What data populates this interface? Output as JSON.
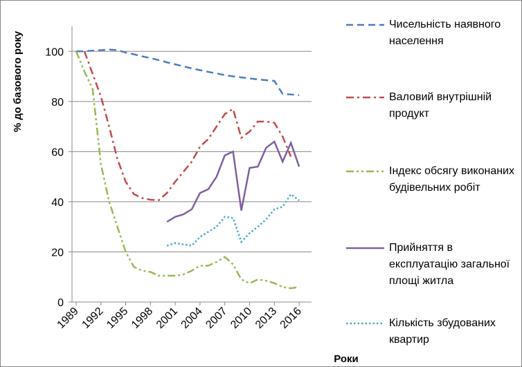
{
  "chart_data": {
    "type": "line",
    "y_label": "% до базового року",
    "x_label": "Роки",
    "x": [
      1989,
      1990,
      1991,
      1992,
      1993,
      1994,
      1995,
      1996,
      1997,
      1998,
      1999,
      2000,
      2001,
      2002,
      2003,
      2004,
      2005,
      2006,
      2007,
      2008,
      2009,
      2010,
      2011,
      2012,
      2013,
      2014,
      2015,
      2016
    ],
    "xlim": [
      1988.5,
      2017.5
    ],
    "xticks": [
      1989,
      1992,
      1995,
      1998,
      2001,
      2004,
      2007,
      2010,
      2013,
      2016
    ],
    "ylim": [
      0,
      110
    ],
    "yticks": [
      0,
      20,
      40,
      60,
      80,
      100
    ],
    "grid": true,
    "series": [
      {
        "name": "Чисельність наявного населення",
        "color": "#4a7ebb",
        "dash": "dashed",
        "values": [
          100,
          100,
          100.3,
          100.5,
          100.7,
          100.5,
          99.5,
          98.8,
          98,
          97.3,
          96.5,
          95.6,
          94.8,
          94,
          93.2,
          92.5,
          91.8,
          91.2,
          90.5,
          90,
          89.6,
          89.2,
          88.8,
          88.5,
          88.2,
          83,
          82.8,
          82.5
        ]
      },
      {
        "name": "Валовий внутрішній продукт",
        "color": "#be4b48",
        "dash": "dashdot",
        "values": [
          null,
          100,
          91,
          82,
          70,
          57,
          48,
          43,
          41.5,
          40.8,
          40.6,
          43.5,
          48,
          52,
          56,
          62,
          65,
          70,
          75,
          77,
          65.5,
          68,
          72,
          72,
          71.5,
          66,
          58,
          null
        ]
      },
      {
        "name": "Індекс обсягу виконаних будівельних робіт",
        "color": "#98b954",
        "dash": "dashdotdot",
        "values": [
          100,
          92,
          85,
          55,
          40,
          30,
          20,
          14,
          12.5,
          12,
          10.5,
          10.5,
          10.5,
          11,
          12.5,
          14.5,
          14.5,
          16,
          18,
          15,
          9,
          7.5,
          9,
          8.5,
          7.5,
          6,
          5.5,
          6
        ]
      },
      {
        "name": "Прийняття в експлуатацію загальної площі житла",
        "color": "#7d60a0",
        "dash": "solid",
        "values": [
          null,
          null,
          null,
          null,
          null,
          null,
          null,
          null,
          null,
          null,
          null,
          32,
          34,
          35,
          37,
          43.5,
          45,
          50,
          58.5,
          60,
          36.5,
          53.5,
          54,
          61.5,
          64,
          56,
          63.5,
          54
        ]
      },
      {
        "name": "Кількість збудованих квартир",
        "color": "#46aac5",
        "dash": "dotted",
        "values": [
          null,
          null,
          null,
          null,
          null,
          null,
          null,
          null,
          null,
          null,
          null,
          22.5,
          23.5,
          23,
          22.5,
          26,
          28,
          30,
          34,
          33.5,
          24,
          27.5,
          30,
          33,
          37,
          38,
          43,
          40.5
        ]
      }
    ]
  }
}
